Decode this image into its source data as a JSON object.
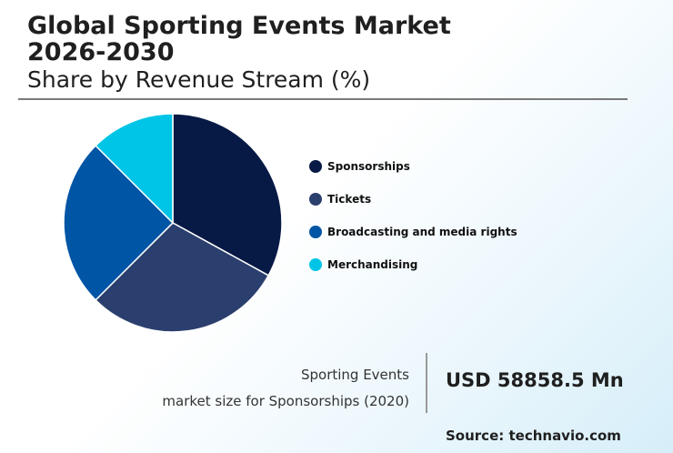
{
  "header": {
    "title": "Global Sporting Events Market 2026-2030",
    "subtitle": "Share by Revenue Stream (%)"
  },
  "chart_data": {
    "type": "pie",
    "title": "Share by Revenue Stream (%)",
    "categories": [
      "Sponsorships",
      "Tickets",
      "Broadcasting and media rights",
      "Merchandising"
    ],
    "values": [
      33,
      29.5,
      25,
      12.5
    ],
    "colors": [
      "#071a45",
      "#2b3f6e",
      "#0055a5",
      "#00c5e6"
    ],
    "legend_position": "right"
  },
  "stat": {
    "caption_line1": "Sporting Events",
    "caption_line2": "market size for Sponsorships (2020)",
    "value": "USD 58858.5 Mn"
  },
  "source": "Source: technavio.com"
}
